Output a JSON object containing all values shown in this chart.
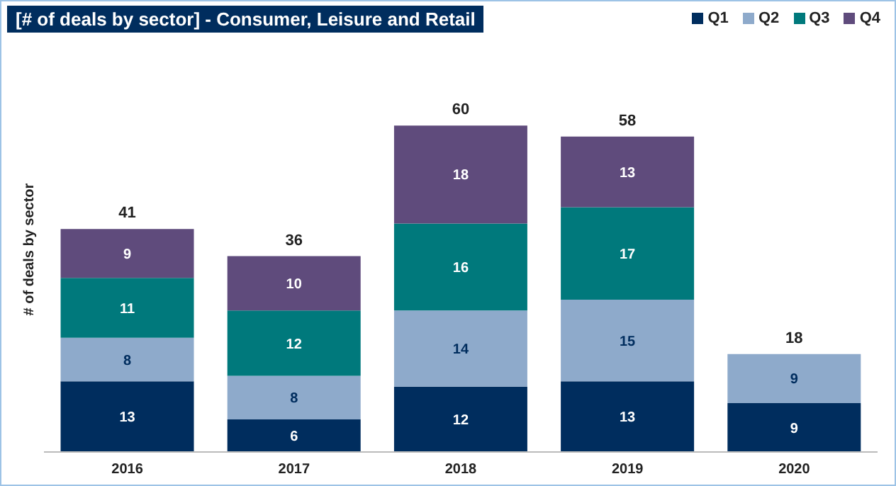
{
  "chart_data": {
    "type": "bar",
    "title": "[# of deals by sector]  -  Consumer, Leisure and Retail",
    "ylabel": "# of deals by sector",
    "categories": [
      "2016",
      "2017",
      "2018",
      "2019",
      "2020"
    ],
    "stacked": true,
    "data_labels": true,
    "legend": "top right",
    "grid": false,
    "series": [
      {
        "name": "Q1",
        "color": "#002d5e",
        "values": [
          13,
          6,
          12,
          13,
          9
        ]
      },
      {
        "name": "Q2",
        "color": "#8eaacb",
        "values": [
          8,
          8,
          14,
          15,
          9
        ]
      },
      {
        "name": "Q3",
        "color": "#00797c",
        "values": [
          11,
          12,
          16,
          17,
          null
        ]
      },
      {
        "name": "Q4",
        "color": "#5f4b7c",
        "values": [
          9,
          10,
          18,
          13,
          null
        ]
      }
    ],
    "totals": [
      "41",
      "36",
      "60",
      "58",
      "18"
    ]
  }
}
